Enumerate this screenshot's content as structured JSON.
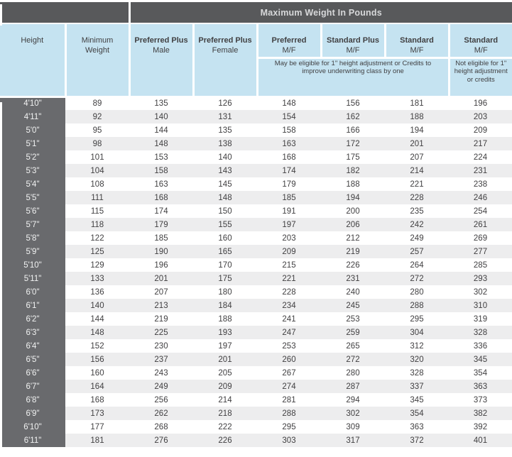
{
  "colors": {
    "dark_header_bg": "#58595b",
    "dark_header_text": "#d7d8da",
    "blue_header_bg": "#c5e3f1",
    "height_column_bg": "#696a6d",
    "height_column_text": "#f1f2f2",
    "alt_row_bg": "#ededee",
    "body_text": "#414042"
  },
  "table": {
    "title": "Maximum Weight In Pounds",
    "columns": [
      {
        "line1": "Height",
        "line2": ""
      },
      {
        "line1": "Minimum",
        "line2": "Weight"
      },
      {
        "line1": "Preferred Plus",
        "line2": "Male"
      },
      {
        "line1": "Preferred Plus",
        "line2": "Female"
      },
      {
        "line1": "Preferred",
        "line2": "M/F"
      },
      {
        "line1": "Standard Plus",
        "line2": "M/F"
      },
      {
        "line1": "Standard",
        "line2": "M/F"
      },
      {
        "line1": "Standard",
        "line2": "M/F"
      }
    ],
    "note_span": "May be eligible for 1\" height adjustment or Credits to improve underwriting class by one",
    "note_last": "Not eligible for 1\" height adjustment or credits",
    "rows": [
      [
        "4'10\"",
        89,
        135,
        126,
        148,
        156,
        181,
        196
      ],
      [
        "4'11\"",
        92,
        140,
        131,
        154,
        162,
        188,
        203
      ],
      [
        "5'0\"",
        95,
        144,
        135,
        158,
        166,
        194,
        209
      ],
      [
        "5'1\"",
        98,
        148,
        138,
        163,
        172,
        201,
        217
      ],
      [
        "5'2\"",
        101,
        153,
        140,
        168,
        175,
        207,
        224
      ],
      [
        "5'3\"",
        104,
        158,
        143,
        174,
        182,
        214,
        231
      ],
      [
        "5'4\"",
        108,
        163,
        145,
        179,
        188,
        221,
        238
      ],
      [
        "5'5\"",
        111,
        168,
        148,
        185,
        194,
        228,
        246
      ],
      [
        "5'6\"",
        115,
        174,
        150,
        191,
        200,
        235,
        254
      ],
      [
        "5'7\"",
        118,
        179,
        155,
        197,
        206,
        242,
        261
      ],
      [
        "5'8\"",
        122,
        185,
        160,
        203,
        212,
        249,
        269
      ],
      [
        "5'9\"",
        125,
        190,
        165,
        209,
        219,
        257,
        277
      ],
      [
        "5'10\"",
        129,
        196,
        170,
        215,
        226,
        264,
        285
      ],
      [
        "5'11\"",
        133,
        201,
        175,
        221,
        231,
        272,
        293
      ],
      [
        "6'0\"",
        136,
        207,
        180,
        228,
        240,
        280,
        302
      ],
      [
        "6'1\"",
        140,
        213,
        184,
        234,
        245,
        288,
        310
      ],
      [
        "6'2\"",
        144,
        219,
        188,
        241,
        253,
        295,
        319
      ],
      [
        "6'3\"",
        148,
        225,
        193,
        247,
        259,
        304,
        328
      ],
      [
        "6'4\"",
        152,
        230,
        197,
        253,
        265,
        312,
        336
      ],
      [
        "6'5\"",
        156,
        237,
        201,
        260,
        272,
        320,
        345
      ],
      [
        "6'6\"",
        160,
        243,
        205,
        267,
        280,
        328,
        354
      ],
      [
        "6'7\"",
        164,
        249,
        209,
        274,
        287,
        337,
        363
      ],
      [
        "6'8\"",
        168,
        256,
        214,
        281,
        294,
        345,
        373
      ],
      [
        "6'9\"",
        173,
        262,
        218,
        288,
        302,
        354,
        382
      ],
      [
        "6'10\"",
        177,
        268,
        222,
        295,
        309,
        363,
        392
      ],
      [
        "6'11\"",
        181,
        276,
        226,
        303,
        317,
        372,
        401
      ]
    ]
  }
}
